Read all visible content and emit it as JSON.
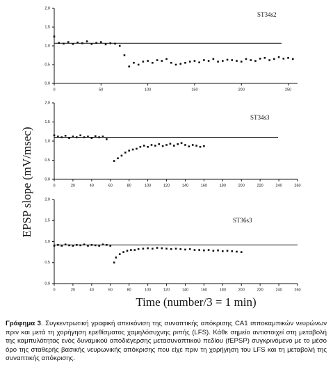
{
  "chart_data": [
    {
      "type": "scatter",
      "title": "ST34s2",
      "color": "#111",
      "x": [
        0,
        5,
        10,
        15,
        20,
        25,
        30,
        35,
        40,
        45,
        50,
        55,
        60,
        65,
        70,
        75,
        80,
        85,
        90,
        95,
        100,
        105,
        110,
        115,
        120,
        125,
        130,
        135,
        140,
        145,
        150,
        155,
        160,
        165,
        170,
        175,
        180,
        185,
        190,
        195,
        200,
        205,
        210,
        215,
        220,
        225,
        230,
        235,
        240,
        245,
        250,
        255
      ],
      "values": [
        1.25,
        1.08,
        1.06,
        1.1,
        1.05,
        1.09,
        1.07,
        1.12,
        1.05,
        1.08,
        1.1,
        1.04,
        1.07,
        1.06,
        1.0,
        0.75,
        0.45,
        0.55,
        0.5,
        0.58,
        0.6,
        0.55,
        0.62,
        0.6,
        0.65,
        0.55,
        0.5,
        0.52,
        0.55,
        0.58,
        0.6,
        0.56,
        0.62,
        0.6,
        0.65,
        0.58,
        0.6,
        0.63,
        0.62,
        0.6,
        0.58,
        0.65,
        0.62,
        0.6,
        0.66,
        0.68,
        0.62,
        0.65,
        0.7,
        0.66,
        0.68,
        0.65
      ],
      "baseline": 1.07,
      "xlim": [
        0,
        260
      ],
      "xticks": [
        0,
        50,
        100,
        150,
        200,
        250
      ],
      "ylim": [
        0,
        2
      ],
      "yticks": [
        {
          "value": 0,
          "label": "0.0"
        },
        {
          "value": 0.5,
          "label": "0.5"
        },
        {
          "value": 1,
          "label": "1.0"
        },
        {
          "value": 1.5,
          "label": "1.5"
        },
        {
          "value": 2,
          "label": "2.0"
        }
      ]
    },
    {
      "type": "scatter",
      "title": "ST34s3",
      "color": "#111",
      "x": [
        0,
        4,
        8,
        12,
        16,
        20,
        24,
        28,
        32,
        36,
        40,
        44,
        48,
        52,
        56,
        64,
        68,
        72,
        76,
        80,
        84,
        88,
        92,
        96,
        100,
        104,
        108,
        112,
        116,
        120,
        124,
        128,
        132,
        136,
        140,
        144,
        148,
        152,
        156,
        160
      ],
      "values": [
        1.15,
        1.12,
        1.1,
        1.14,
        1.08,
        1.12,
        1.1,
        1.15,
        1.1,
        1.12,
        1.08,
        1.13,
        1.1,
        1.12,
        1.05,
        0.48,
        0.55,
        0.62,
        0.7,
        0.75,
        0.78,
        0.8,
        0.85,
        0.88,
        0.85,
        0.9,
        0.88,
        0.92,
        0.87,
        0.9,
        0.93,
        0.88,
        0.92,
        0.95,
        0.9,
        0.86,
        0.9,
        0.88,
        0.85,
        0.87
      ],
      "baseline": 1.1,
      "xlim": [
        0,
        260
      ],
      "xticks": [
        0,
        20,
        40,
        60,
        80,
        100,
        120,
        140,
        160,
        180,
        200,
        220,
        240,
        260
      ],
      "ylim": [
        0,
        2
      ],
      "yticks": [
        {
          "value": 0,
          "label": "0.0"
        },
        {
          "value": 0.5,
          "label": "0.5"
        },
        {
          "value": 1,
          "label": "1.0"
        },
        {
          "value": 1.5,
          "label": "1.5"
        },
        {
          "value": 2,
          "label": "2.0"
        }
      ]
    },
    {
      "type": "scatter",
      "title": "ST36s3",
      "color": "#111",
      "x": [
        0,
        4,
        8,
        12,
        16,
        20,
        24,
        28,
        32,
        36,
        40,
        44,
        48,
        52,
        56,
        60,
        64,
        66,
        70,
        74,
        78,
        82,
        86,
        90,
        95,
        100,
        105,
        110,
        115,
        120,
        125,
        130,
        135,
        140,
        145,
        150,
        155,
        160,
        165,
        170,
        175,
        180,
        185,
        190,
        195,
        200
      ],
      "values": [
        0.9,
        0.92,
        0.9,
        0.93,
        0.91,
        0.9,
        0.92,
        0.91,
        0.93,
        0.9,
        0.92,
        0.91,
        0.9,
        0.93,
        0.92,
        0.9,
        0.5,
        0.62,
        0.7,
        0.75,
        0.78,
        0.8,
        0.8,
        0.82,
        0.83,
        0.84,
        0.83,
        0.85,
        0.84,
        0.83,
        0.82,
        0.83,
        0.82,
        0.81,
        0.82,
        0.8,
        0.8,
        0.79,
        0.8,
        0.78,
        0.79,
        0.77,
        0.78,
        0.77,
        0.76,
        0.75
      ],
      "baseline": 0.92,
      "xlim": [
        0,
        260
      ],
      "xticks": [
        0,
        20,
        40,
        60,
        80,
        100,
        120,
        140,
        160,
        180,
        200,
        220,
        240,
        260
      ],
      "ylim": [
        0,
        2
      ],
      "yticks": [
        {
          "value": 0,
          "label": "0.0"
        },
        {
          "value": 0.5,
          "label": "0.5"
        },
        {
          "value": 1,
          "label": "1.0"
        },
        {
          "value": 1.5,
          "label": "1.5"
        },
        {
          "value": 2,
          "label": "2.0"
        }
      ]
    }
  ],
  "y_label": "EPSP slope (mV/msec)",
  "x_label": "Time (number/3 = 1 min)",
  "caption": {
    "label": "Γράφημα 3",
    "text": ". Συγκεντρωτική γραφική απεικόνιση της συναπτικής απόκρισης CA1 ιπποκαμπικών νευρώνων πριν και μετά τη χορήγηση ερεθίσματος χαμηλόσυχνης ριπής (LFS). Κάθε σημείο αντιστοιχεί στη μεταβολή της καμπυλότητας ενός δυναμικού αποδιέγερσης μετασυναπτικού πεδίου (fEPSP) συγκρινόμενο με το μέσο όρο της σταθερής βασικής νευρωνικής απόκρισης που είχε πριν τη χορήγηση του LFS και τη μεταβολή της συναπτικής απόκρισης."
  }
}
